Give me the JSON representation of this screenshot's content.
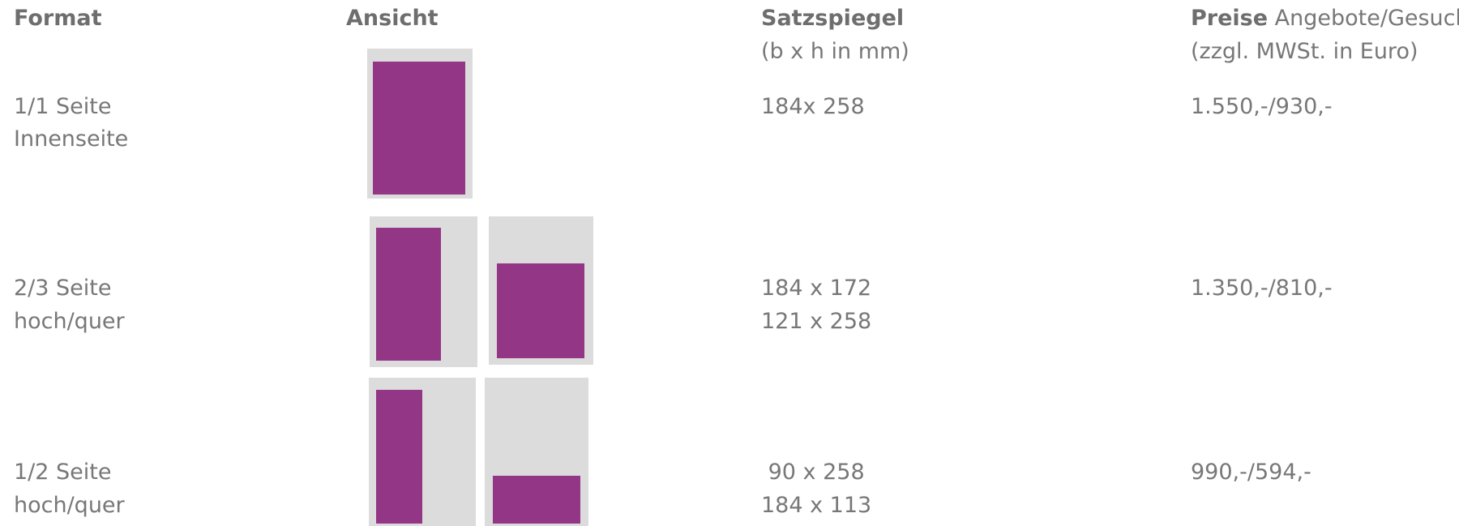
{
  "header": {
    "format": "Format",
    "view": "Ansicht",
    "size": {
      "title": "Satzspiegel",
      "sub": "(b x h in mm)"
    },
    "price": {
      "title": "Preise",
      "title_rest": "Angebote/Gesuch",
      "sub": "(zzgl. MWSt. in Euro)"
    }
  },
  "rows": [
    {
      "format": [
        "1/1 Seite",
        "Innenseite"
      ],
      "size": [
        "184x 258"
      ],
      "price": "1.550,-/930,-"
    },
    {
      "format": [
        "2/3 Seite",
        "hoch/quer"
      ],
      "size": [
        "184 x 172",
        "121 x 258"
      ],
      "price": "1.350,-/810,-"
    },
    {
      "format": [
        "1/2 Seite",
        "hoch/quer"
      ],
      "size": [
        " 90 x 258",
        "184 x 113"
      ],
      "price": "990,-/594,-"
    }
  ]
}
